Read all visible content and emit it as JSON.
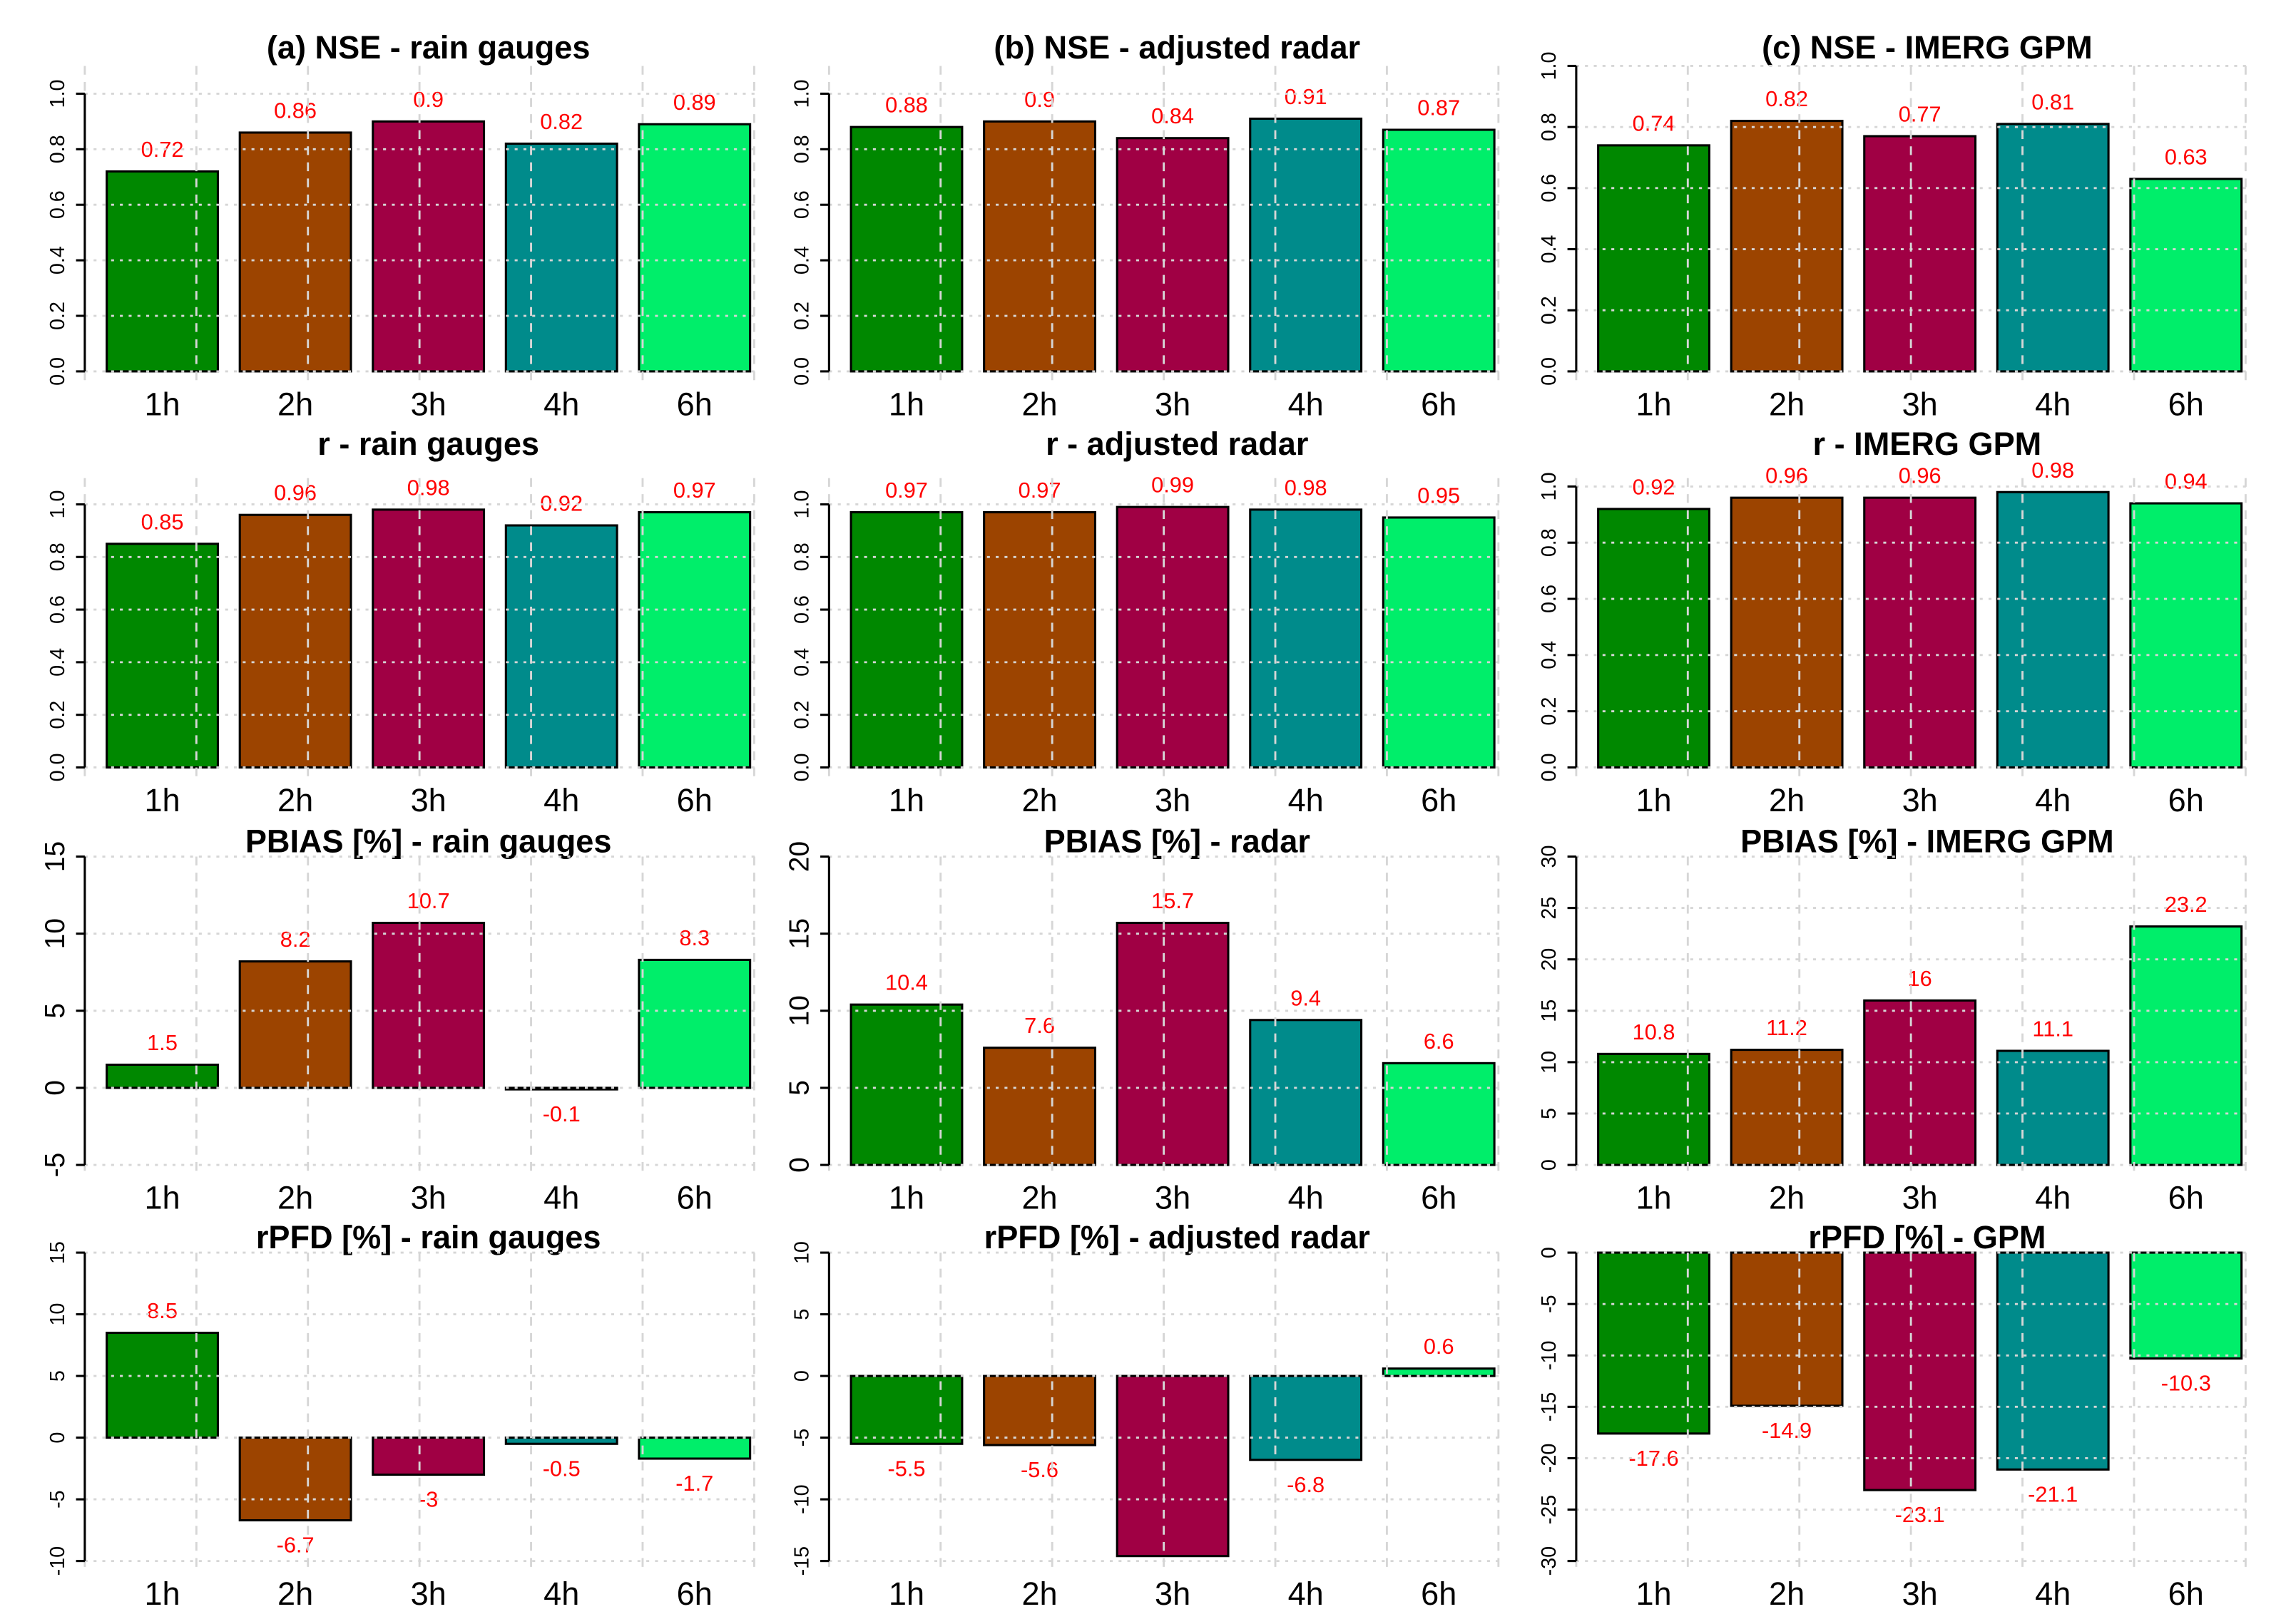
{
  "chart_data": [
    {
      "type": "bar",
      "title": "(a) NSE - rain gauges",
      "categories": [
        "1h",
        "2h",
        "3h",
        "4h",
        "6h"
      ],
      "values": [
        0.72,
        0.86,
        0.9,
        0.82,
        0.89
      ],
      "labels": [
        "0.72",
        "0.86",
        "0.9",
        "0.82",
        "0.89"
      ],
      "ylim": [
        0,
        1.1
      ],
      "yticks": [
        "0.0",
        "0.2",
        "0.4",
        "0.6",
        "0.8",
        "1.0"
      ],
      "ytick_values": [
        0,
        0.2,
        0.4,
        0.6,
        0.8,
        1.0
      ],
      "grid": true
    },
    {
      "type": "bar",
      "title": "(b) NSE - adjusted radar",
      "categories": [
        "1h",
        "2h",
        "3h",
        "4h",
        "6h"
      ],
      "values": [
        0.88,
        0.9,
        0.84,
        0.91,
        0.87
      ],
      "labels": [
        "0.88",
        "0.9",
        "0.84",
        "0.91",
        "0.87"
      ],
      "ylim": [
        0,
        1.1
      ],
      "yticks": [
        "0.0",
        "0.2",
        "0.4",
        "0.6",
        "0.8",
        "1.0"
      ],
      "ytick_values": [
        0,
        0.2,
        0.4,
        0.6,
        0.8,
        1.0
      ],
      "grid": true
    },
    {
      "type": "bar",
      "title": "(c) NSE - IMERG GPM",
      "categories": [
        "1h",
        "2h",
        "3h",
        "4h",
        "6h"
      ],
      "values": [
        0.74,
        0.82,
        0.77,
        0.81,
        0.63
      ],
      "labels": [
        "0.74",
        "0.82",
        "0.77",
        "0.81",
        "0.63"
      ],
      "ylim": [
        0,
        1.0
      ],
      "yticks": [
        "0.0",
        "0.2",
        "0.4",
        "0.6",
        "0.8",
        "1.0"
      ],
      "ytick_values": [
        0,
        0.2,
        0.4,
        0.6,
        0.8,
        1.0
      ],
      "grid": true
    },
    {
      "type": "bar",
      "title": "r - rain gauges",
      "categories": [
        "1h",
        "2h",
        "3h",
        "4h",
        "6h"
      ],
      "values": [
        0.85,
        0.96,
        0.98,
        0.92,
        0.97
      ],
      "labels": [
        "0.85",
        "0.96",
        "0.98",
        "0.92",
        "0.97"
      ],
      "ylim": [
        0,
        1.1
      ],
      "yticks": [
        "0.0",
        "0.2",
        "0.4",
        "0.6",
        "0.8",
        "1.0"
      ],
      "ytick_values": [
        0,
        0.2,
        0.4,
        0.6,
        0.8,
        1.0
      ],
      "grid": true
    },
    {
      "type": "bar",
      "title": "r - adjusted radar",
      "categories": [
        "1h",
        "2h",
        "3h",
        "4h",
        "6h"
      ],
      "values": [
        0.97,
        0.97,
        0.99,
        0.98,
        0.95
      ],
      "labels": [
        "0.97",
        "0.97",
        "0.99",
        "0.98",
        "0.95"
      ],
      "ylim": [
        0,
        1.1
      ],
      "yticks": [
        "0.0",
        "0.2",
        "0.4",
        "0.6",
        "0.8",
        "1.0"
      ],
      "ytick_values": [
        0,
        0.2,
        0.4,
        0.6,
        0.8,
        1.0
      ],
      "grid": true
    },
    {
      "type": "bar",
      "title": "r - IMERG GPM",
      "categories": [
        "1h",
        "2h",
        "3h",
        "4h",
        "6h"
      ],
      "values": [
        0.92,
        0.96,
        0.96,
        0.98,
        0.94
      ],
      "labels": [
        "0.92",
        "0.96",
        "0.96",
        "0.98",
        "0.94"
      ],
      "ylim": [
        0,
        1.03
      ],
      "yticks": [
        "0.0",
        "0.2",
        "0.4",
        "0.6",
        "0.8",
        "1.0"
      ],
      "ytick_values": [
        0,
        0.2,
        0.4,
        0.6,
        0.8,
        1.0
      ],
      "grid": true
    },
    {
      "type": "bar",
      "title": "PBIAS [%] - rain gauges",
      "categories": [
        "1h",
        "2h",
        "3h",
        "4h",
        "6h"
      ],
      "values": [
        1.5,
        8.2,
        10.7,
        -0.1,
        8.3
      ],
      "labels": [
        "1.5",
        "8.2",
        "10.7",
        "-0.1",
        "8.3"
      ],
      "ylim": [
        -5,
        15
      ],
      "yticks": [
        "-5",
        "0",
        "5",
        "10",
        "15"
      ],
      "ytick_values": [
        -5,
        0,
        5,
        10,
        15
      ],
      "grid": true
    },
    {
      "type": "bar",
      "title": "PBIAS [%] - radar",
      "categories": [
        "1h",
        "2h",
        "3h",
        "4h",
        "6h"
      ],
      "values": [
        10.4,
        7.6,
        15.7,
        9.4,
        6.6
      ],
      "labels": [
        "10.4",
        "7.6",
        "15.7",
        "9.4",
        "6.6"
      ],
      "ylim": [
        0,
        20
      ],
      "yticks": [
        "0",
        "5",
        "10",
        "15",
        "20"
      ],
      "ytick_values": [
        0,
        5,
        10,
        15,
        20
      ],
      "grid": true
    },
    {
      "type": "bar",
      "title": "PBIAS [%] - IMERG GPM",
      "categories": [
        "1h",
        "2h",
        "3h",
        "4h",
        "6h"
      ],
      "values": [
        10.8,
        11.2,
        16,
        11.1,
        23.2
      ],
      "labels": [
        "10.8",
        "11.2",
        "16",
        "11.1",
        "23.2"
      ],
      "ylim": [
        0,
        30
      ],
      "yticks": [
        "0",
        "5",
        "10",
        "15",
        "20",
        "25",
        "30"
      ],
      "ytick_values": [
        0,
        5,
        10,
        15,
        20,
        25,
        30
      ],
      "grid": true
    },
    {
      "type": "bar",
      "title": "rPFD [%] - rain gauges",
      "categories": [
        "1h",
        "2h",
        "3h",
        "4h",
        "6h"
      ],
      "values": [
        8.5,
        -6.7,
        -3,
        -0.5,
        -1.7
      ],
      "labels": [
        "8.5",
        "-6.7",
        "-3",
        "-0.5",
        "-1.7"
      ],
      "ylim": [
        -10,
        15
      ],
      "yticks": [
        "-10",
        "-5",
        "0",
        "5",
        "10",
        "15"
      ],
      "ytick_values": [
        -10,
        -5,
        0,
        5,
        10,
        15
      ],
      "grid": true
    },
    {
      "type": "bar",
      "title": "rPFD [%] - adjusted radar",
      "categories": [
        "1h",
        "2h",
        "3h",
        "4h",
        "6h"
      ],
      "values": [
        -5.5,
        -5.6,
        -14.6,
        -6.8,
        0.6
      ],
      "labels": [
        "-5.5",
        "-5.6",
        null,
        "-6.8",
        "0.6"
      ],
      "ylim": [
        -15,
        10
      ],
      "yticks": [
        "-15",
        "-10",
        "-5",
        "0",
        "5",
        "10"
      ],
      "ytick_values": [
        -15,
        -10,
        -5,
        0,
        5,
        10
      ],
      "grid": true
    },
    {
      "type": "bar",
      "title": "rPFD [%] - GPM",
      "categories": [
        "1h",
        "2h",
        "3h",
        "4h",
        "6h"
      ],
      "values": [
        -17.6,
        -14.9,
        -23.1,
        -21.1,
        -10.3
      ],
      "labels": [
        "-17.6",
        "-14.9",
        "-23.1",
        "-21.1",
        "-10.3"
      ],
      "ylim": [
        -30,
        0
      ],
      "yticks": [
        "-30",
        "-25",
        "-20",
        "-15",
        "-10",
        "-5",
        "0"
      ],
      "ytick_values": [
        -30,
        -25,
        -20,
        -15,
        -10,
        -5,
        0
      ],
      "grid": true
    }
  ],
  "colors": [
    "#008800",
    "#9c4400",
    "#a00044",
    "#008b8b",
    "#00ee6a"
  ],
  "label_color": "#ff0000"
}
